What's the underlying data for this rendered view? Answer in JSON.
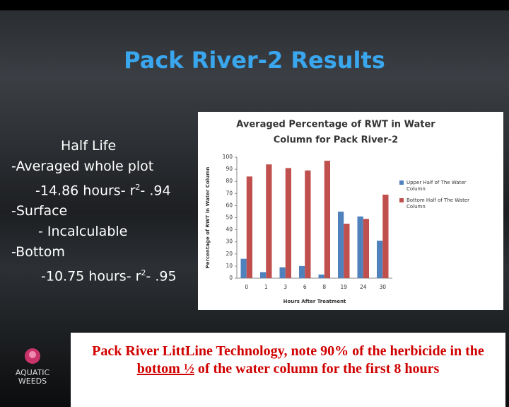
{
  "slide": {
    "title": "Pack River-2 Results",
    "half_life": {
      "heading": "Half Life",
      "line1": "-Averaged whole plot",
      "line2": [
        "-14.86 hours- r",
        "2",
        "- .94"
      ],
      "line3": "-Surface",
      "line4": "- Incalculable",
      "line5": "-Bottom",
      "line6": [
        "-10.75 hours- r",
        "2",
        "- .95"
      ]
    },
    "logo": [
      "AQUATIC",
      "WEEDS"
    ],
    "footer": [
      "Pack River LittLine Technology, note 90% of the herbicide in the ",
      "bottom ½",
      " of the water column for the first 8 hours"
    ]
  },
  "chart_data": {
    "type": "bar",
    "title": [
      "Averaged Percentage of RWT in Water",
      "Column for Pack River-2"
    ],
    "x_label": "Hours After Treatment",
    "y_label": "Percentage of RWT in Water Column",
    "categories": [
      "0",
      "1",
      "3",
      "6",
      "8",
      "19",
      "24",
      "30"
    ],
    "series": [
      {
        "name": [
          "Upper Half of The Water",
          "Column"
        ],
        "color": "#4f81bd",
        "values": [
          16,
          5,
          9,
          10,
          3,
          55,
          51,
          31
        ]
      },
      {
        "name": [
          "Bottom Half of The Water",
          "Column"
        ],
        "color": "#c0504d",
        "values": [
          84,
          94,
          91,
          89,
          97,
          45,
          49,
          69
        ]
      }
    ],
    "ylim": [
      0,
      100
    ],
    "yticks": [
      0,
      10,
      20,
      30,
      40,
      50,
      60,
      70,
      80,
      90,
      100
    ],
    "grid": false,
    "legend": "right"
  }
}
